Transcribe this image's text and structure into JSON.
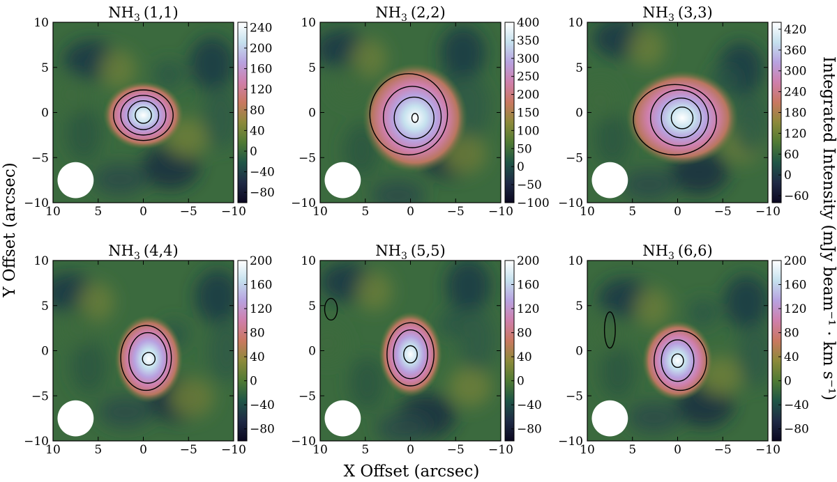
{
  "chart_data": {
    "type": "heatmap",
    "xlabel": "X Offset (arcsec)",
    "ylabel": "Y Offset (arcsec)",
    "colorbar_label": "Integrated Intensity (mJy beam⁻¹ · km s⁻¹)",
    "xlim": [
      10,
      -10
    ],
    "ylim": [
      -10,
      10
    ],
    "xticks": [
      10,
      5,
      0,
      -5,
      -10
    ],
    "yticks": [
      -10,
      -5,
      0,
      5,
      10
    ],
    "xtick_labels": [
      "10",
      "5",
      "0",
      "−5",
      "−10"
    ],
    "ytick_labels": [
      "−10",
      "−5",
      "0",
      "5",
      "10"
    ],
    "colormap": [
      "#0b0820",
      "#1f2a45",
      "#1f5546",
      "#4f7a34",
      "#8c8a3a",
      "#c97860",
      "#cf7fab",
      "#b8a2e0",
      "#c5e1ee",
      "#ffffff"
    ],
    "beam_color": "#ffffff",
    "panels": [
      {
        "molecule": "NH",
        "subscript": "3",
        "transition": "(1,1)",
        "vmin": -100,
        "vmax": 250,
        "colorbar_ticks": [
          -80,
          -40,
          0,
          40,
          80,
          120,
          160,
          200,
          240
        ],
        "colorbar_tick_labels": [
          "−80",
          "−40",
          "0",
          "40",
          "80",
          "120",
          "160",
          "200",
          "240"
        ],
        "peak": {
          "x": 0,
          "y": -0.3,
          "value": 250
        },
        "contour_ellipses": [
          [
            0,
            -0.3,
            3.3,
            2.8
          ],
          [
            0,
            -0.3,
            2.5,
            2.2
          ],
          [
            0,
            -0.3,
            1.7,
            1.6
          ],
          [
            0,
            -0.3,
            0.9,
            0.9
          ]
        ],
        "beam": {
          "x": 7.5,
          "y": -7.5,
          "r": 2
        }
      },
      {
        "molecule": "NH",
        "subscript": "3",
        "transition": "(2,2)",
        "vmin": -100,
        "vmax": 400,
        "colorbar_ticks": [
          -100,
          -50,
          0,
          50,
          100,
          150,
          200,
          250,
          300,
          350,
          400
        ],
        "colorbar_tick_labels": [
          "−100",
          "−50",
          "0",
          "50",
          "100",
          "150",
          "200",
          "250",
          "300",
          "350",
          "400"
        ],
        "peak": {
          "x": -0.5,
          "y": -0.6,
          "value": 400
        },
        "contour_ellipses": [
          [
            0.2,
            -0.2,
            4.3,
            4.5
          ],
          [
            -0.2,
            -0.5,
            3.2,
            3.4
          ],
          [
            -0.4,
            -0.6,
            2.2,
            2.3
          ],
          [
            -0.5,
            -0.6,
            0.35,
            0.5
          ]
        ],
        "beam": {
          "x": 7.5,
          "y": -7.5,
          "r": 2
        }
      },
      {
        "molecule": "NH",
        "subscript": "3",
        "transition": "(3,3)",
        "vmin": -80,
        "vmax": 440,
        "colorbar_ticks": [
          -60,
          0,
          60,
          120,
          180,
          240,
          300,
          360,
          420
        ],
        "colorbar_tick_labels": [
          "−60",
          "0",
          "60",
          "120",
          "180",
          "240",
          "300",
          "360",
          "420"
        ],
        "peak": {
          "x": -0.5,
          "y": -0.6,
          "value": 440
        },
        "contour_ellipses": [
          [
            0.3,
            -0.8,
            4.6,
            3.9
          ],
          [
            -0.2,
            -0.6,
            3.2,
            3.1
          ],
          [
            -0.4,
            -0.6,
            2.2,
            2.2
          ],
          [
            -0.5,
            -0.6,
            1.2,
            1.2
          ]
        ],
        "beam": {
          "x": 7.5,
          "y": -7.5,
          "r": 2
        }
      },
      {
        "molecule": "NH",
        "subscript": "3",
        "transition": "(4,4)",
        "vmin": -100,
        "vmax": 200,
        "colorbar_ticks": [
          -80,
          -40,
          0,
          40,
          80,
          120,
          160,
          200
        ],
        "colorbar_tick_labels": [
          "−80",
          "−40",
          "0",
          "40",
          "80",
          "120",
          "160",
          "200"
        ],
        "peak": {
          "x": -0.6,
          "y": -0.9,
          "value": 200
        },
        "contour_ellipses": [
          [
            -0.3,
            -0.8,
            2.8,
            3.6
          ],
          [
            -0.5,
            -0.8,
            2.1,
            2.8
          ],
          [
            -0.6,
            -0.9,
            0.7,
            0.7
          ]
        ],
        "beam": {
          "x": 7.5,
          "y": -7.5,
          "r": 2
        }
      },
      {
        "molecule": "NH",
        "subscript": "3",
        "transition": "(5,5)",
        "vmin": -100,
        "vmax": 200,
        "colorbar_ticks": [
          -80,
          -40,
          0,
          40,
          80,
          120,
          160,
          200
        ],
        "colorbar_tick_labels": [
          "−80",
          "−40",
          "0",
          "40",
          "80",
          "120",
          "160",
          "200"
        ],
        "peak": {
          "x": 0,
          "y": -0.4,
          "value": 200
        },
        "contour_ellipses": [
          [
            0,
            -0.4,
            2.6,
            3.5
          ],
          [
            0,
            -0.4,
            1.9,
            2.7
          ],
          [
            0,
            -0.4,
            0.75,
            0.95
          ],
          [
            8.8,
            4.6,
            0.7,
            1.2
          ]
        ],
        "beam": {
          "x": 7.5,
          "y": -7.5,
          "r": 2
        }
      },
      {
        "molecule": "NH",
        "subscript": "3",
        "transition": "(6,6)",
        "vmin": -100,
        "vmax": 200,
        "colorbar_ticks": [
          -80,
          -40,
          0,
          40,
          80,
          120,
          160,
          200
        ],
        "colorbar_tick_labels": [
          "−80",
          "−40",
          "0",
          "40",
          "80",
          "120",
          "160",
          "200"
        ],
        "peak": {
          "x": 0,
          "y": -1.1,
          "value": 200
        },
        "contour_ellipses": [
          [
            -0.3,
            -1.1,
            2.9,
            3.3
          ],
          [
            0,
            -1.1,
            1.8,
            2.3
          ],
          [
            0,
            -1.1,
            0.65,
            0.75
          ],
          [
            7.5,
            2.3,
            0.6,
            2.0
          ]
        ],
        "beam": {
          "x": 7.5,
          "y": -7.5,
          "r": 2
        }
      }
    ]
  }
}
